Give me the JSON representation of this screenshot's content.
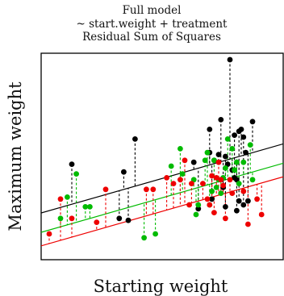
{
  "chart_data": {
    "type": "scatter",
    "title_lines": [
      "Full model",
      "~ start.weight + treatment",
      "Residual Sum of Squares"
    ],
    "xlabel": "Starting weight",
    "ylabel": "Maximum weight",
    "xlim": [
      0,
      100
    ],
    "ylim": [
      0,
      100
    ],
    "ticks_shown": false,
    "grid": false,
    "legend": "none",
    "residual_line_style": "dashed",
    "lines": [
      {
        "color": "#000000",
        "intercept": 22,
        "slope": 0.333
      },
      {
        "color": "#00bb00",
        "intercept": 12,
        "slope": 0.333
      },
      {
        "color": "#ee0000",
        "intercept": 5,
        "slope": 0.333
      }
    ],
    "series": [
      {
        "color": "#000000",
        "intercept": 22,
        "slope": 0.333,
        "x": [
          10,
          31,
          33,
          38,
          66,
          71,
          72,
          73,
          75,
          76,
          77,
          78,
          79,
          80,
          81,
          82,
          82,
          83,
          84,
          85,
          86,
          87,
          88,
          90,
          64,
          78,
          84,
          71,
          83,
          86,
          35
        ],
        "y": [
          46,
          18,
          42,
          59,
          23,
          64,
          28,
          48,
          51,
          69,
          34,
          50,
          46,
          100,
          43,
          61,
          39,
          38,
          63,
          64,
          60,
          52,
          27,
          68,
          47,
          24,
          27,
          52,
          22,
          25,
          17
        ]
      },
      {
        "color": "#00bb00",
        "intercept": 12,
        "slope": 0.333,
        "x": [
          5,
          8,
          12,
          16,
          18,
          42,
          47,
          54,
          58,
          59,
          64,
          66,
          69,
          70,
          71,
          72,
          73,
          74,
          75,
          76,
          77,
          78,
          79,
          81,
          82,
          83,
          84,
          86,
          89,
          90,
          65
        ],
        "y": [
          18,
          29,
          41,
          24,
          24,
          8,
          10,
          45,
          54,
          41,
          38,
          25,
          48,
          52,
          25,
          32,
          48,
          34,
          38,
          31,
          39,
          44,
          59,
          54,
          43,
          47,
          36,
          47,
          56,
          38,
          20
        ]
      },
      {
        "color": "#ee0000",
        "intercept": 5,
        "slope": 0.333,
        "x": [
          0,
          5,
          10,
          21,
          25,
          43,
          46,
          52,
          55,
          58,
          60,
          62,
          63,
          68,
          70,
          71,
          72,
          73,
          74,
          75,
          76,
          77,
          78,
          80,
          81,
          86,
          88,
          92,
          94
        ],
        "y": [
          10,
          28,
          18,
          16,
          33,
          33,
          33,
          39,
          36,
          38,
          48,
          25,
          36,
          36,
          28,
          25,
          40,
          21,
          39,
          47,
          38,
          35,
          18,
          38,
          31,
          32,
          15,
          28,
          20
        ]
      }
    ]
  }
}
